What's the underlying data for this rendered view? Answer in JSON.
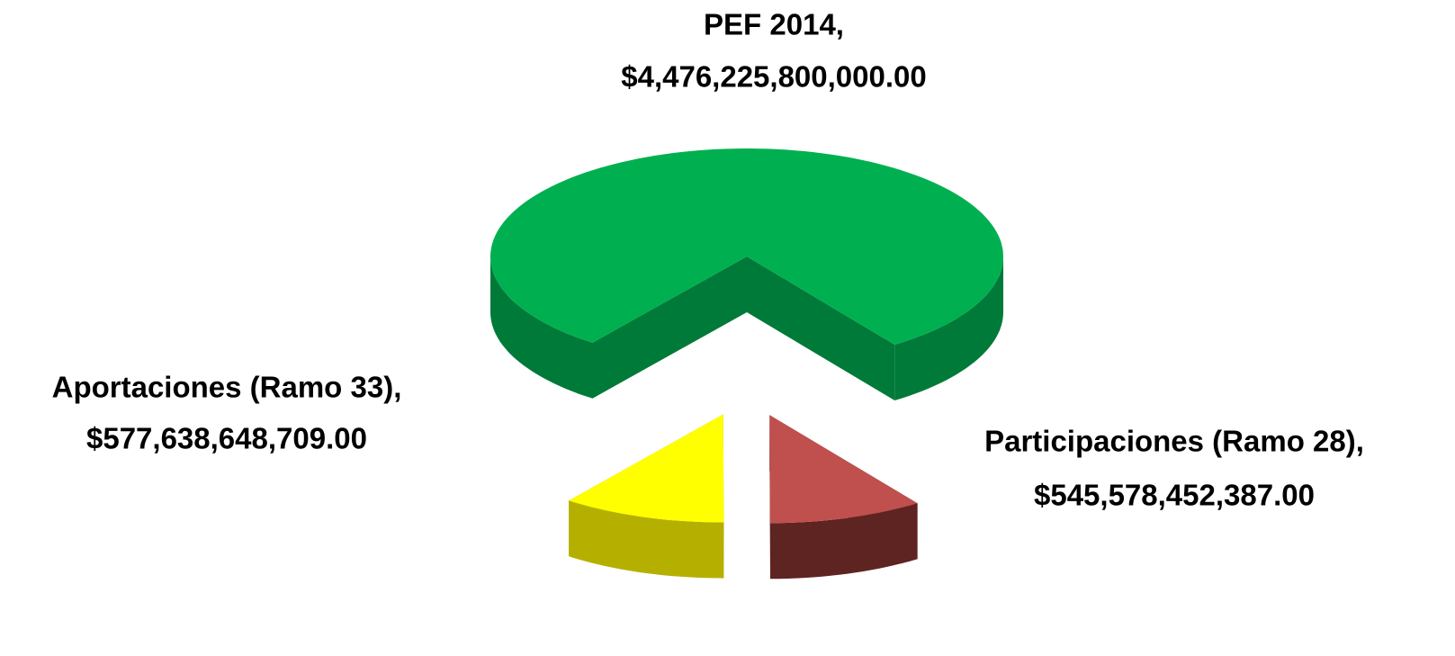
{
  "chart_data": {
    "type": "pie3d",
    "categories": [
      "PEF 2014,",
      "Participaciones (Ramo 28),",
      "Aportaciones (Ramo 33),"
    ],
    "values": [
      4476225800000,
      545578452387,
      577638648709
    ],
    "value_labels": [
      "$4,476,225,800,000.00",
      "$545,578,452,387.00",
      "$577,638,648,709.00"
    ],
    "colors": [
      "#00b050",
      "#c0504d",
      "#ffff00"
    ],
    "side_colors": [
      "#007a38",
      "#5e2422",
      "#b5b000"
    ]
  }
}
